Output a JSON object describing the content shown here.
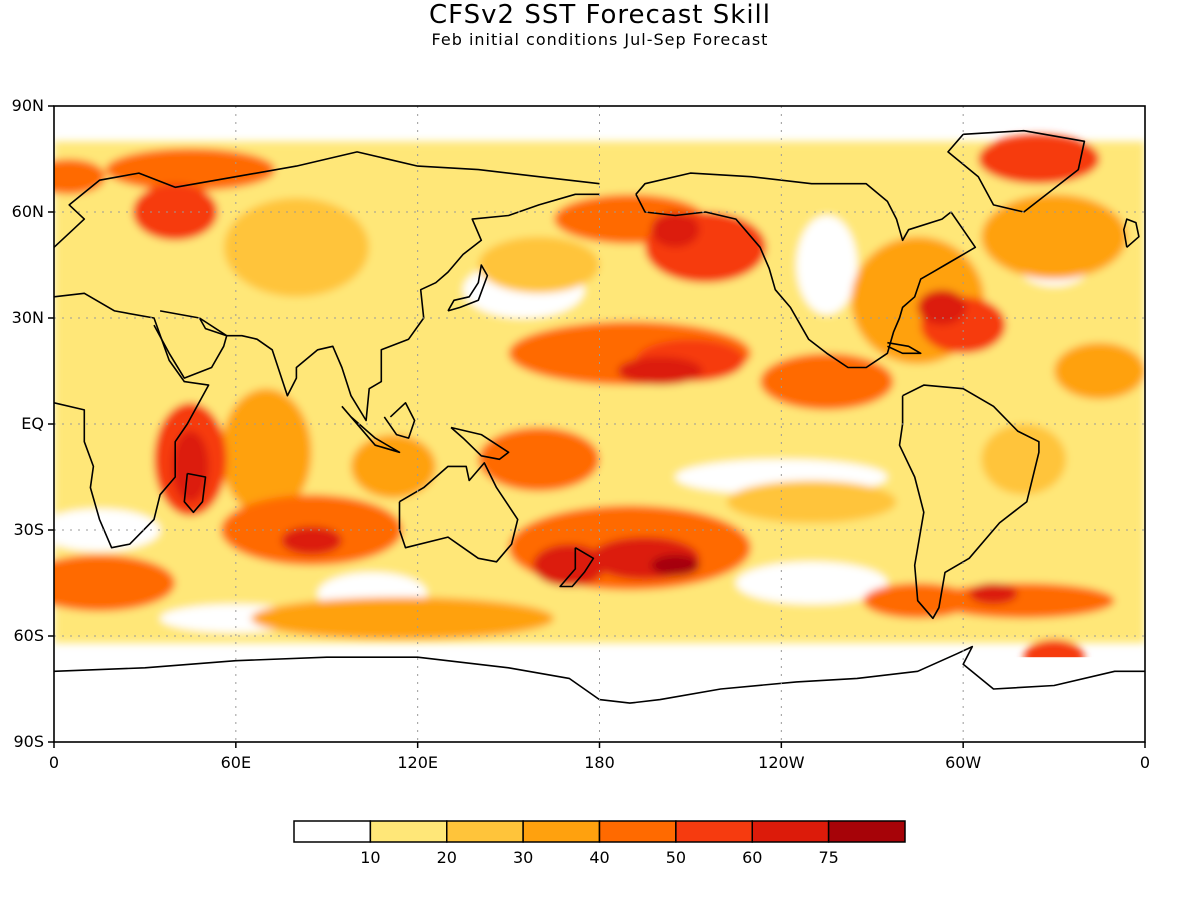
{
  "title": "CFSv2 SST Forecast Skill",
  "subtitle": "Feb initial conditions  Jul-Sep Forecast",
  "lat_labels": [
    "90N",
    "60N",
    "30N",
    "EQ",
    "30S",
    "60S",
    "90S"
  ],
  "lon_labels": [
    "0",
    "60E",
    "120E",
    "180",
    "120W",
    "60W",
    "0"
  ],
  "colorbar": {
    "labels": [
      "10",
      "20",
      "30",
      "40",
      "50",
      "60",
      "75"
    ],
    "colors": [
      "#ffffff",
      "#ffe778",
      "#ffc43a",
      "#ffa10e",
      "#ff6a00",
      "#f63b0f",
      "#dc1b0a",
      "#a60308"
    ]
  },
  "chart_data": {
    "type": "heatmap",
    "title": "CFSv2 SST Forecast Skill",
    "subtitle": "Feb initial conditions  Jul-Sep Forecast",
    "xlim": [
      0,
      360
    ],
    "ylim": [
      -90,
      90
    ],
    "x_ticks": [
      "0",
      "60E",
      "120E",
      "180",
      "120W",
      "60W",
      "0"
    ],
    "y_ticks": [
      "90N",
      "60N",
      "30N",
      "EQ",
      "30S",
      "60S",
      "90S"
    ],
    "grid": true,
    "color_levels": [
      10,
      20,
      30,
      40,
      50,
      60,
      75
    ],
    "skill_regions": [
      {
        "lon": 40,
        "lat": 60,
        "rx": 14,
        "ry": 8,
        "level": 50
      },
      {
        "lon": 45,
        "lat": 72,
        "rx": 28,
        "ry": 6,
        "level": 40
      },
      {
        "lon": 5,
        "lat": 70,
        "rx": 12,
        "ry": 5,
        "level": 40
      },
      {
        "lon": 80,
        "lat": 50,
        "rx": 24,
        "ry": 14,
        "level": 20
      },
      {
        "lon": 190,
        "lat": 58,
        "rx": 25,
        "ry": 7,
        "level": 40
      },
      {
        "lon": 205,
        "lat": 55,
        "rx": 8,
        "ry": 5,
        "level": 60
      },
      {
        "lon": 215,
        "lat": 50,
        "rx": 20,
        "ry": 10,
        "level": 50
      },
      {
        "lon": 160,
        "lat": 45,
        "rx": 20,
        "ry": 8,
        "level": 20
      },
      {
        "lon": 190,
        "lat": 20,
        "rx": 40,
        "ry": 9,
        "level": 40
      },
      {
        "lon": 210,
        "lat": 18,
        "rx": 18,
        "ry": 6,
        "level": 50
      },
      {
        "lon": 200,
        "lat": 15,
        "rx": 14,
        "ry": 4,
        "level": 60
      },
      {
        "lon": 255,
        "lat": 12,
        "rx": 22,
        "ry": 8,
        "level": 40
      },
      {
        "lon": 285,
        "lat": 35,
        "rx": 22,
        "ry": 18,
        "level": 30
      },
      {
        "lon": 300,
        "lat": 28,
        "rx": 14,
        "ry": 8,
        "level": 50
      },
      {
        "lon": 293,
        "lat": 33,
        "rx": 8,
        "ry": 5,
        "level": 60
      },
      {
        "lon": 325,
        "lat": 75,
        "rx": 20,
        "ry": 7,
        "level": 50
      },
      {
        "lon": 330,
        "lat": 53,
        "rx": 24,
        "ry": 12,
        "level": 30
      },
      {
        "lon": 345,
        "lat": 15,
        "rx": 15,
        "ry": 8,
        "level": 30
      },
      {
        "lon": 320,
        "lat": -10,
        "rx": 14,
        "ry": 10,
        "level": 20
      },
      {
        "lon": 45,
        "lat": -10,
        "rx": 12,
        "ry": 16,
        "level": 50
      },
      {
        "lon": 45,
        "lat": -12,
        "rx": 6,
        "ry": 10,
        "level": 60
      },
      {
        "lon": 70,
        "lat": -8,
        "rx": 15,
        "ry": 18,
        "level": 30
      },
      {
        "lon": 85,
        "lat": -30,
        "rx": 30,
        "ry": 10,
        "level": 40
      },
      {
        "lon": 85,
        "lat": -33,
        "rx": 10,
        "ry": 4,
        "level": 60
      },
      {
        "lon": 112,
        "lat": -12,
        "rx": 14,
        "ry": 9,
        "level": 30
      },
      {
        "lon": 160,
        "lat": -10,
        "rx": 20,
        "ry": 9,
        "level": 40
      },
      {
        "lon": 190,
        "lat": -35,
        "rx": 40,
        "ry": 12,
        "level": 40
      },
      {
        "lon": 195,
        "lat": -38,
        "rx": 18,
        "ry": 6,
        "level": 60
      },
      {
        "lon": 205,
        "lat": -40,
        "rx": 8,
        "ry": 3,
        "level": 75
      },
      {
        "lon": 170,
        "lat": -40,
        "rx": 12,
        "ry": 6,
        "level": 60
      },
      {
        "lon": 250,
        "lat": -22,
        "rx": 28,
        "ry": 6,
        "level": 20
      },
      {
        "lon": 285,
        "lat": -50,
        "rx": 18,
        "ry": 5,
        "level": 40
      },
      {
        "lon": 320,
        "lat": -50,
        "rx": 30,
        "ry": 5,
        "level": 40
      },
      {
        "lon": 310,
        "lat": -48,
        "rx": 8,
        "ry": 3,
        "level": 60
      },
      {
        "lon": 15,
        "lat": -45,
        "rx": 25,
        "ry": 8,
        "level": 40
      },
      {
        "lon": 115,
        "lat": -55,
        "rx": 50,
        "ry": 6,
        "level": 30
      },
      {
        "lon": 330,
        "lat": -66,
        "rx": 10,
        "ry": 5,
        "level": 50
      }
    ]
  }
}
